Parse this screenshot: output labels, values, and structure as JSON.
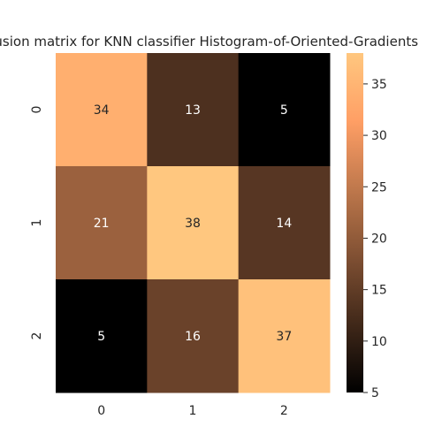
{
  "chart_data": {
    "type": "heatmap",
    "title": "Confusion matrix for KNN classifier    Histogram-of-Oriented-Gradients",
    "x_categories": [
      "0",
      "1",
      "2"
    ],
    "y_categories": [
      "0",
      "1",
      "2"
    ],
    "matrix": [
      [
        34,
        13,
        5
      ],
      [
        21,
        38,
        14
      ],
      [
        5,
        16,
        37
      ]
    ],
    "colorbar": {
      "min": 5,
      "max": 38,
      "ticks": [
        "5",
        "10",
        "15",
        "20",
        "25",
        "30",
        "35"
      ]
    },
    "colormap": "copper",
    "annot_dark_text": "#262626",
    "annot_light_text": "#ffffff",
    "xlabel": "",
    "ylabel": ""
  }
}
